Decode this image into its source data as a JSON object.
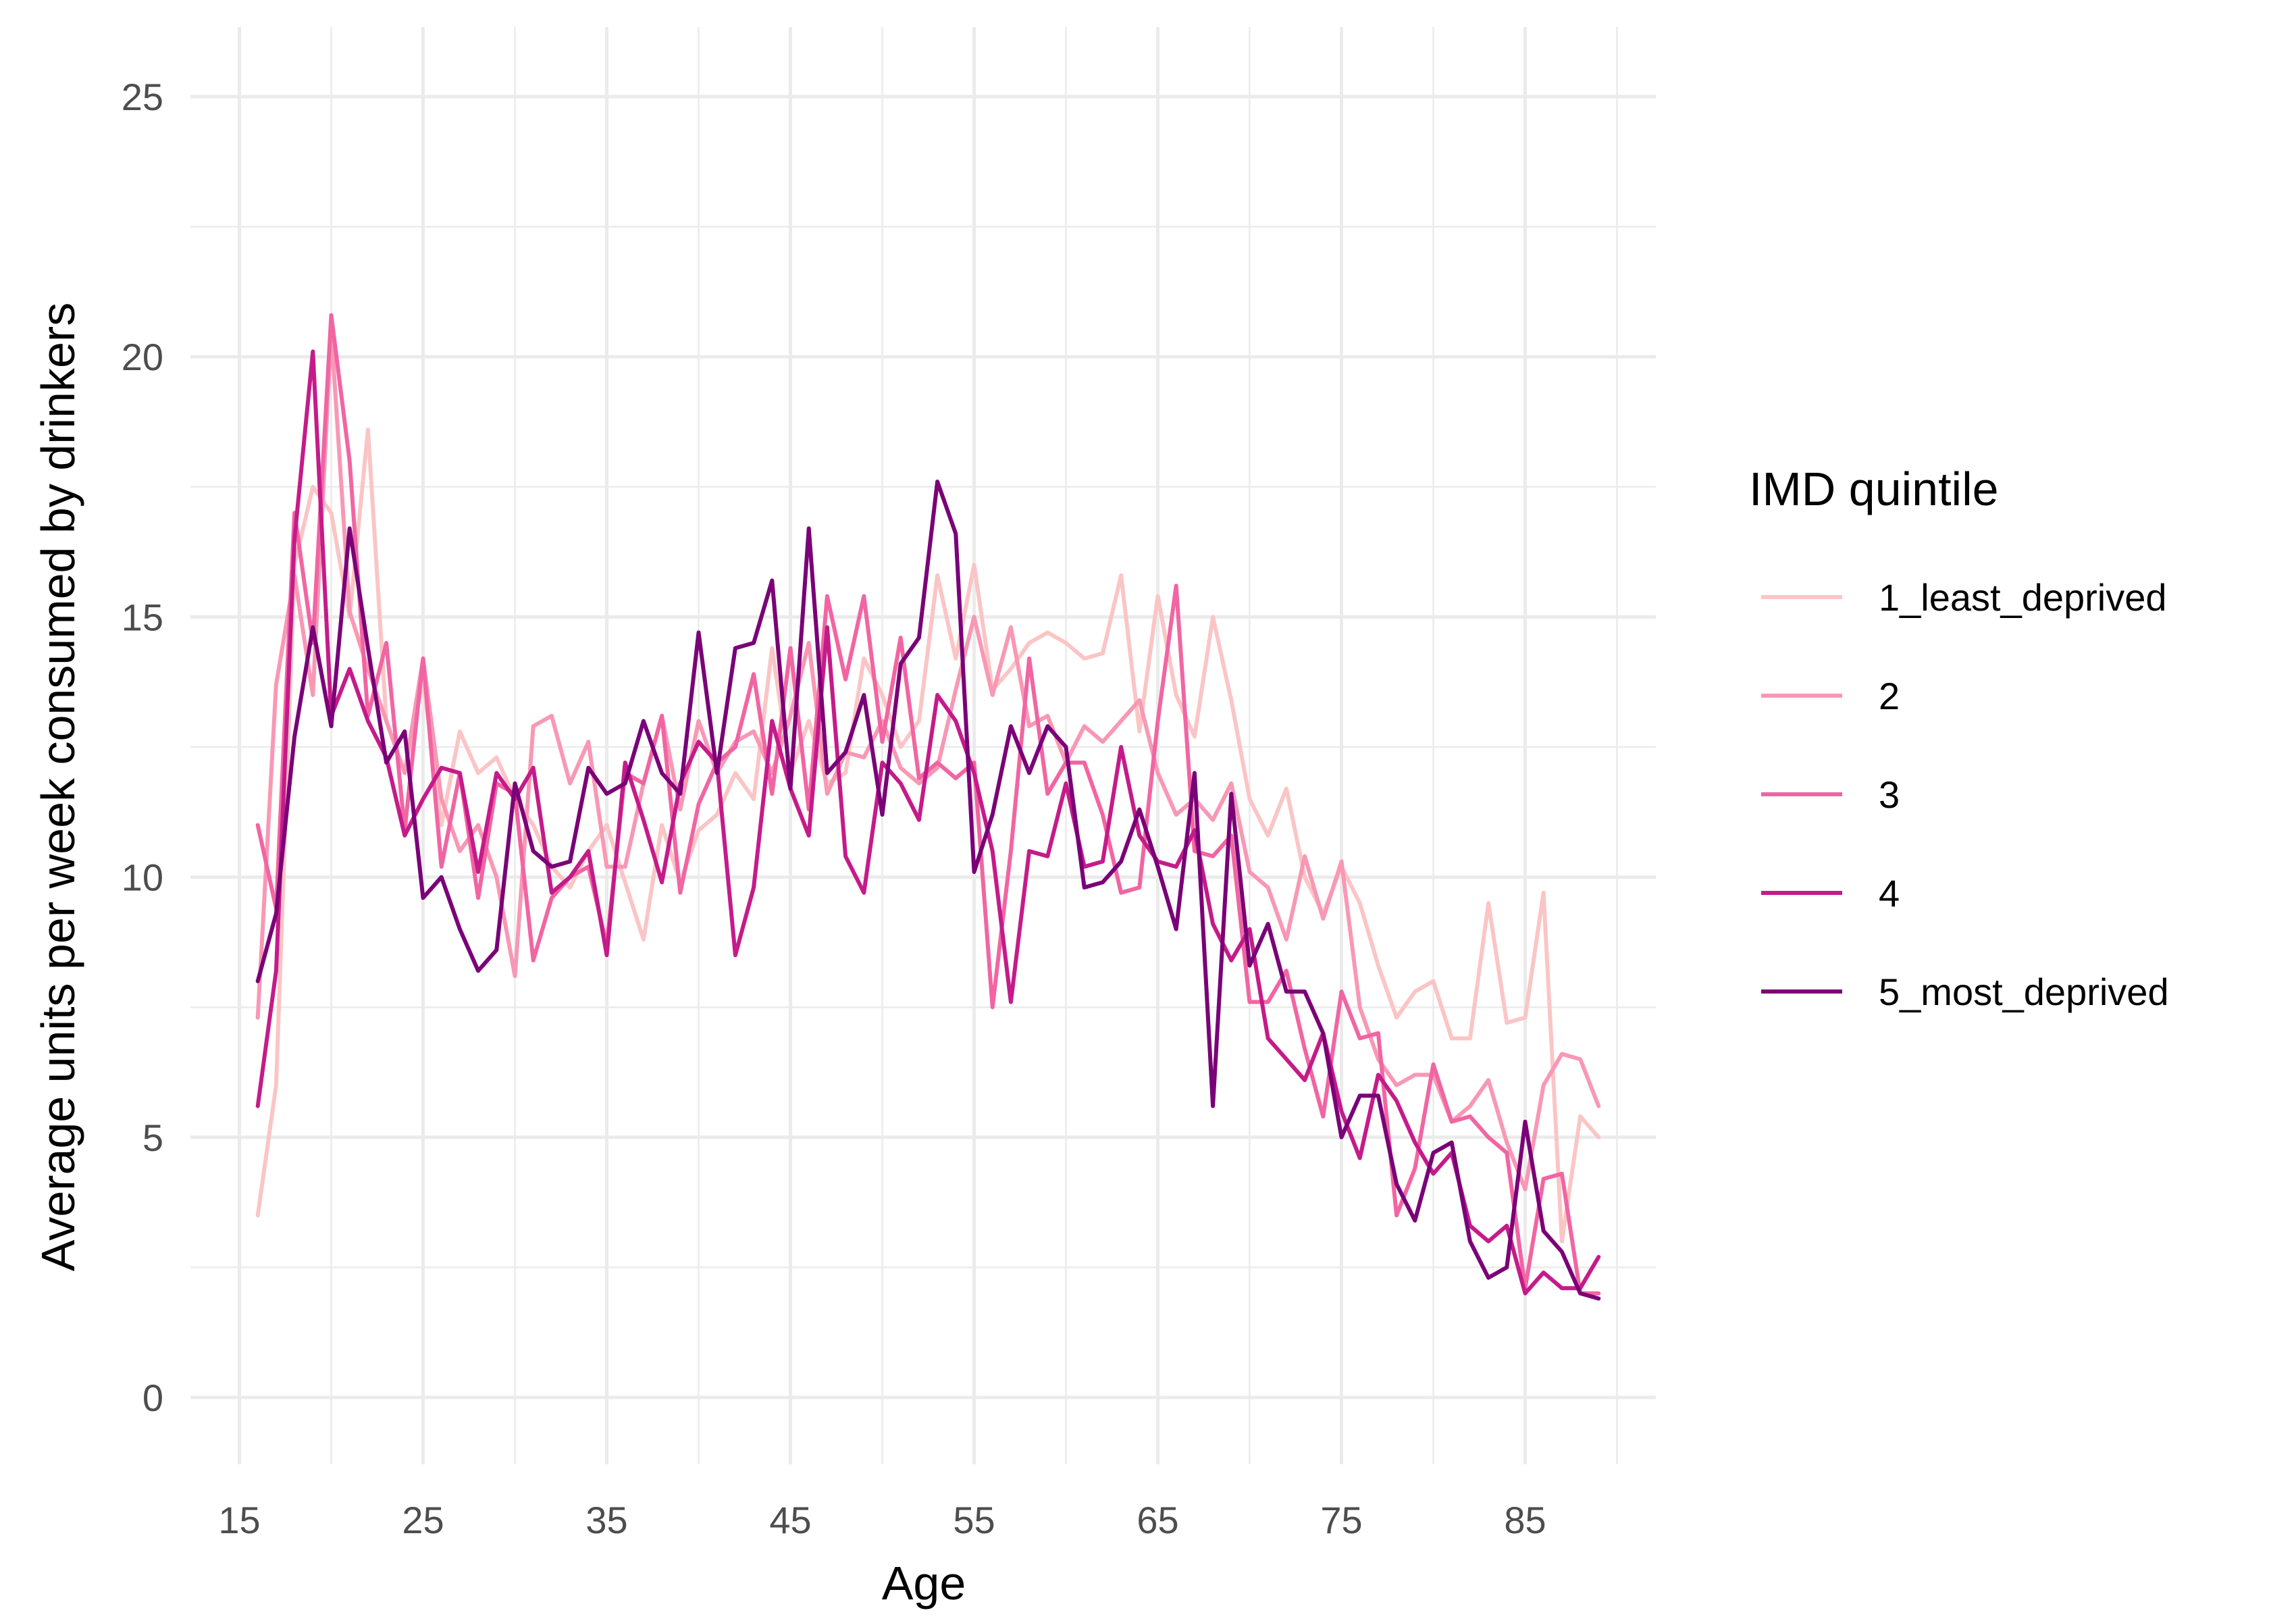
{
  "chart_data": {
    "type": "line",
    "title": "",
    "xlabel": "Age",
    "ylabel": "Average units per week consumed by drinkers",
    "xlim": [
      16,
      89
    ],
    "ylim": [
      0,
      25
    ],
    "x_ticks": [
      15,
      25,
      35,
      45,
      55,
      65,
      75,
      85
    ],
    "y_ticks": [
      0,
      5,
      10,
      15,
      20,
      25
    ],
    "grid": true,
    "legend": {
      "title": "IMD quintile",
      "position": "right"
    },
    "x": [
      16,
      17,
      18,
      19,
      20,
      21,
      22,
      23,
      24,
      25,
      26,
      27,
      28,
      29,
      30,
      31,
      32,
      33,
      34,
      35,
      36,
      37,
      38,
      39,
      40,
      41,
      42,
      43,
      44,
      45,
      46,
      47,
      48,
      49,
      50,
      51,
      52,
      53,
      54,
      55,
      56,
      57,
      58,
      59,
      60,
      61,
      62,
      63,
      64,
      65,
      66,
      67,
      68,
      69,
      70,
      71,
      72,
      73,
      74,
      75,
      76,
      77,
      78,
      79,
      80,
      81,
      82,
      83,
      84,
      85,
      86,
      87,
      88,
      89
    ],
    "series": [
      {
        "name": "1_least_deprived",
        "color": "#FBC5C5",
        "values": [
          3.5,
          6.0,
          16.0,
          17.5,
          17.0,
          15.0,
          18.6,
          13.0,
          12.0,
          13.8,
          11.0,
          12.8,
          12.0,
          12.3,
          11.5,
          11.0,
          10.2,
          9.8,
          10.5,
          11.0,
          9.9,
          8.8,
          11.0,
          9.9,
          10.9,
          11.2,
          12.0,
          11.5,
          14.4,
          12.0,
          13.0,
          11.8,
          12.0,
          14.2,
          13.5,
          12.5,
          13.0,
          15.8,
          14.2,
          16.0,
          13.6,
          14.0,
          14.5,
          14.7,
          14.5,
          14.2,
          14.3,
          15.8,
          12.8,
          15.4,
          13.5,
          12.7,
          15.0,
          13.4,
          11.5,
          10.8,
          11.7,
          10.0,
          9.3,
          10.2,
          9.5,
          8.3,
          7.3,
          7.8,
          8.0,
          6.9,
          6.9,
          9.5,
          7.2,
          7.3,
          9.7,
          3.0,
          5.4,
          5.0
        ]
      },
      {
        "name": "2",
        "color": "#F898B5",
        "values": [
          7.3,
          13.7,
          15.8,
          13.5,
          20.5,
          15.1,
          14.0,
          13.0,
          12.0,
          14.2,
          11.5,
          10.5,
          11.0,
          10.0,
          8.1,
          12.9,
          13.1,
          11.8,
          12.6,
          10.2,
          10.2,
          11.8,
          13.1,
          11.3,
          13.0,
          12.0,
          12.6,
          12.8,
          12.0,
          13.1,
          14.5,
          11.6,
          12.4,
          12.3,
          13.0,
          12.1,
          11.8,
          12.1,
          13.6,
          15.0,
          13.5,
          14.8,
          12.9,
          13.1,
          12.2,
          12.9,
          12.6,
          13.0,
          13.4,
          12.0,
          11.2,
          11.5,
          11.1,
          11.8,
          10.1,
          9.8,
          8.8,
          10.4,
          9.2,
          10.3,
          7.5,
          6.5,
          6.0,
          6.2,
          6.2,
          5.3,
          5.6,
          6.1,
          4.9,
          4.0,
          6.0,
          6.6,
          6.5,
          5.6
        ]
      },
      {
        "name": "3",
        "color": "#F165A2",
        "values": [
          11.0,
          9.4,
          17.0,
          14.5,
          20.8,
          18.0,
          13.1,
          14.5,
          10.9,
          14.2,
          10.2,
          12.0,
          9.6,
          11.8,
          11.6,
          8.4,
          9.6,
          10.0,
          10.2,
          8.7,
          12.0,
          11.8,
          13.1,
          9.7,
          11.4,
          12.2,
          12.5,
          13.9,
          11.6,
          14.4,
          11.3,
          15.4,
          13.8,
          15.4,
          12.6,
          14.6,
          11.9,
          12.2,
          11.9,
          12.2,
          7.5,
          10.5,
          14.2,
          11.6,
          12.2,
          12.2,
          11.2,
          9.7,
          9.8,
          13.0,
          15.6,
          10.5,
          10.4,
          10.8,
          7.6,
          7.6,
          8.2,
          6.7,
          5.4,
          7.8,
          6.9,
          7.0,
          3.5,
          4.4,
          6.4,
          5.3,
          5.4,
          5.0,
          4.7,
          2.1,
          4.2,
          4.3,
          2.0,
          2.0
        ]
      },
      {
        "name": "4",
        "color": "#C51B8A",
        "values": [
          5.6,
          8.2,
          16.5,
          20.1,
          13.1,
          14.0,
          13.0,
          12.3,
          10.8,
          11.5,
          12.1,
          12.0,
          10.1,
          12.0,
          11.5,
          12.1,
          9.7,
          10.0,
          10.5,
          8.5,
          12.2,
          11.1,
          9.9,
          11.8,
          12.6,
          12.2,
          8.5,
          9.8,
          13.0,
          11.7,
          10.8,
          14.8,
          10.4,
          9.7,
          12.2,
          11.8,
          11.1,
          13.5,
          13.0,
          12.0,
          10.5,
          7.6,
          10.5,
          10.4,
          11.8,
          10.2,
          10.3,
          12.5,
          10.8,
          10.3,
          10.2,
          10.9,
          9.1,
          8.4,
          9.0,
          6.9,
          6.5,
          6.1,
          7.0,
          5.5,
          4.6,
          6.2,
          5.7,
          4.9,
          4.3,
          4.7,
          3.3,
          3.0,
          3.3,
          2.0,
          2.4,
          2.1,
          2.1,
          2.7
        ]
      },
      {
        "name": "5_most_deprived",
        "color": "#7A0177",
        "values": [
          8.0,
          9.3,
          12.7,
          14.8,
          12.9,
          16.7,
          14.4,
          12.2,
          12.8,
          9.6,
          10.0,
          9.0,
          8.2,
          8.6,
          11.8,
          10.5,
          10.2,
          10.3,
          12.1,
          11.6,
          11.8,
          13.0,
          12.0,
          11.6,
          14.7,
          12.0,
          14.4,
          14.5,
          15.7,
          11.7,
          16.7,
          12.0,
          12.4,
          13.5,
          11.2,
          14.1,
          14.6,
          17.6,
          16.6,
          10.1,
          11.2,
          12.9,
          12.0,
          12.9,
          12.5,
          9.8,
          9.9,
          10.3,
          11.3,
          10.2,
          9.0,
          12.0,
          5.6,
          11.6,
          8.3,
          9.1,
          7.8,
          7.8,
          7.0,
          5.0,
          5.8,
          5.8,
          4.1,
          3.4,
          4.7,
          4.9,
          3.0,
          2.3,
          2.5,
          5.3,
          3.2,
          2.8,
          2.0,
          1.9
        ]
      }
    ]
  }
}
